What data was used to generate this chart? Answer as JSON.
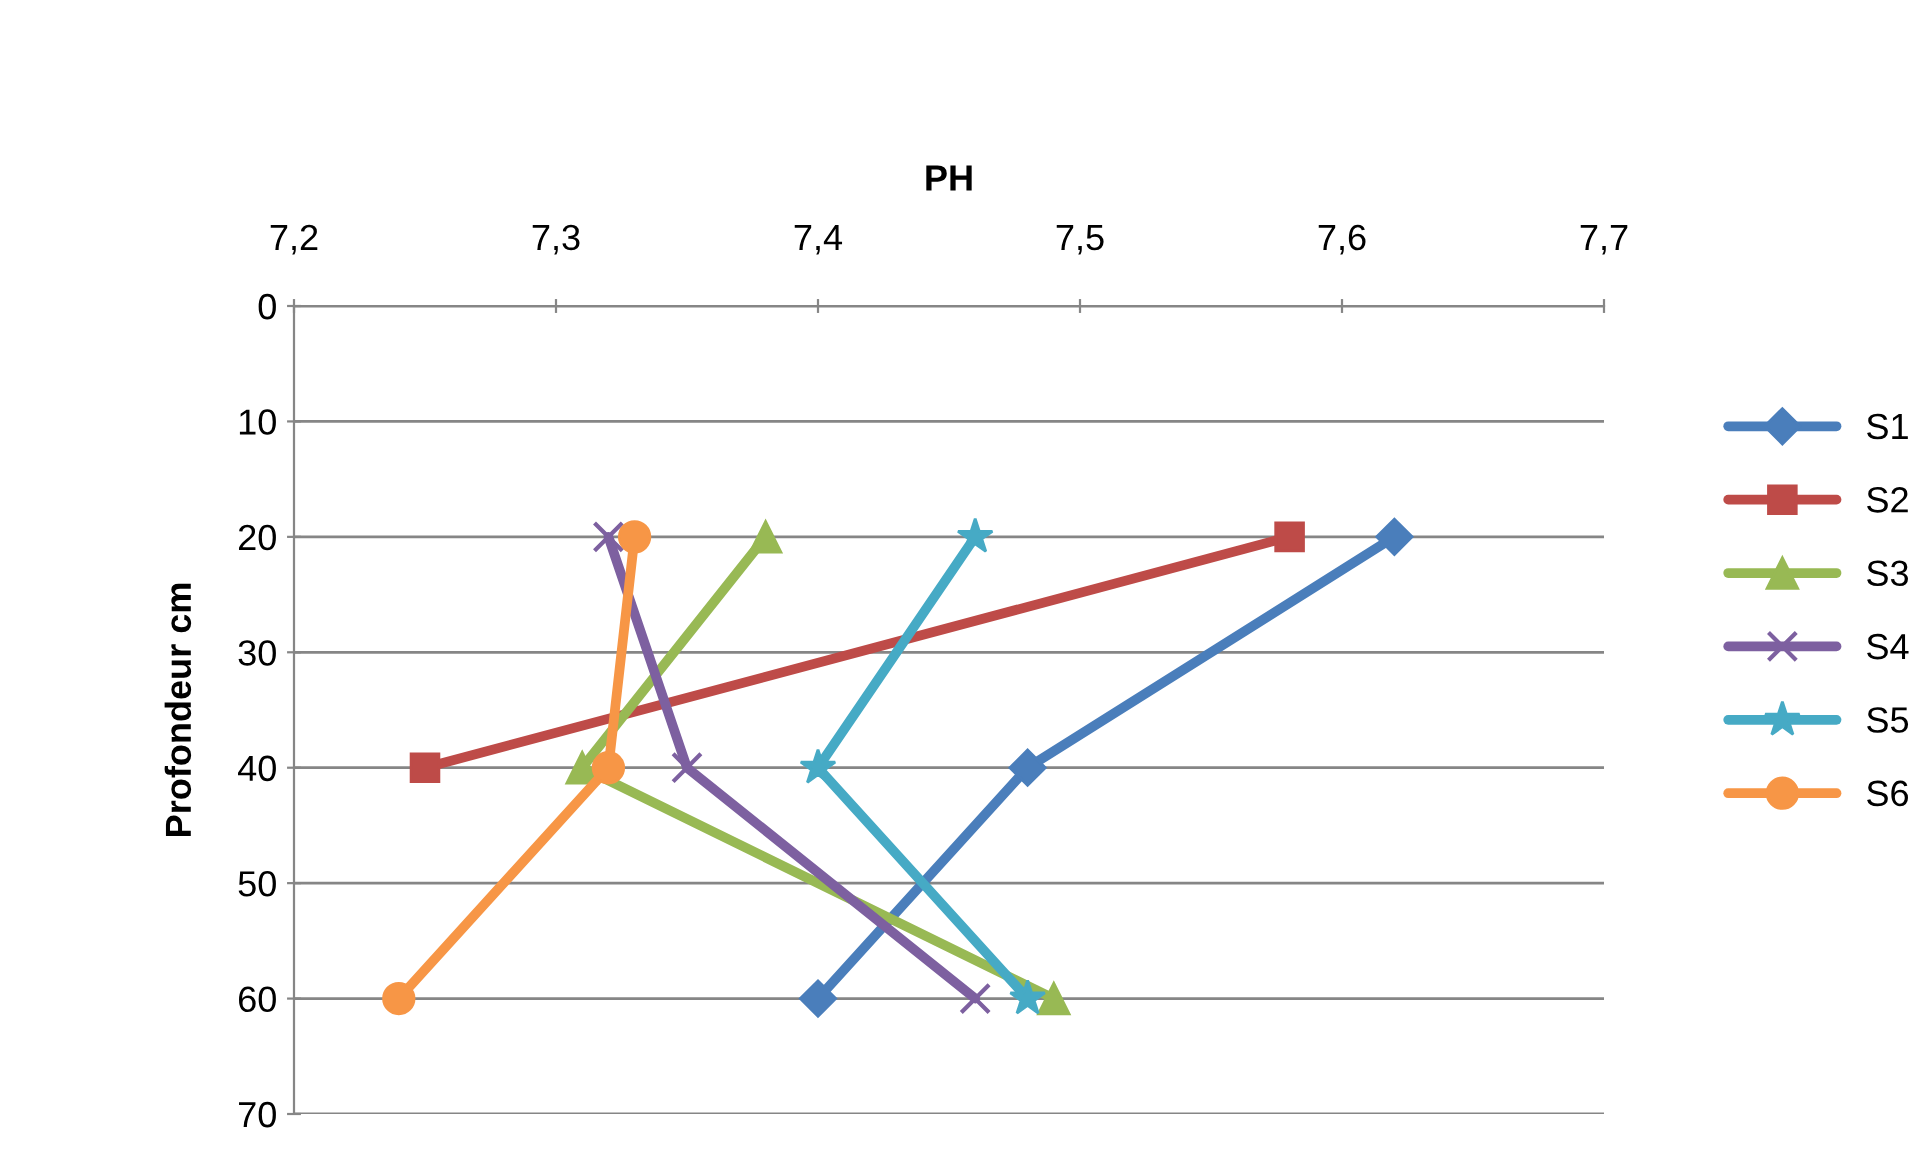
{
  "chart_data": {
    "type": "line",
    "xlabel": "PH",
    "ylabel": "Profondeur cm",
    "xlim": [
      7.2,
      7.7
    ],
    "xticks": [
      {
        "value": 7.2,
        "label": "7,2"
      },
      {
        "value": 7.3,
        "label": "7,3"
      },
      {
        "value": 7.4,
        "label": "7,4"
      },
      {
        "value": 7.5,
        "label": "7,5"
      },
      {
        "value": 7.6,
        "label": "7,6"
      },
      {
        "value": 7.7,
        "label": "7,7"
      }
    ],
    "ylim": [
      70,
      0
    ],
    "yticks": [
      0,
      10,
      20,
      30,
      40,
      50,
      60,
      70
    ],
    "grid": "y",
    "legend": "right",
    "series": [
      {
        "name": "S1",
        "color": "#4a7ebb",
        "marker": "diamond",
        "x": [
          7.62,
          7.48,
          7.4
        ],
        "values": [
          20,
          40,
          60
        ]
      },
      {
        "name": "S2",
        "color": "#be4b48",
        "marker": "square",
        "x": [
          7.58,
          7.25
        ],
        "values": [
          20,
          40
        ]
      },
      {
        "name": "S3",
        "color": "#98b954",
        "marker": "triangle",
        "x": [
          7.38,
          7.31,
          7.49
        ],
        "values": [
          20,
          40,
          60
        ]
      },
      {
        "name": "S4",
        "color": "#7d60a0",
        "marker": "cross",
        "x": [
          7.32,
          7.35,
          7.46
        ],
        "values": [
          20,
          40,
          60
        ]
      },
      {
        "name": "S5",
        "color": "#46aac5",
        "marker": "star",
        "x": [
          7.46,
          7.4,
          7.48
        ],
        "values": [
          20,
          40,
          60
        ]
      },
      {
        "name": "S6",
        "color": "#f79646",
        "marker": "circle",
        "x": [
          7.33,
          7.32,
          7.24
        ],
        "values": [
          20,
          40,
          60
        ]
      }
    ]
  }
}
